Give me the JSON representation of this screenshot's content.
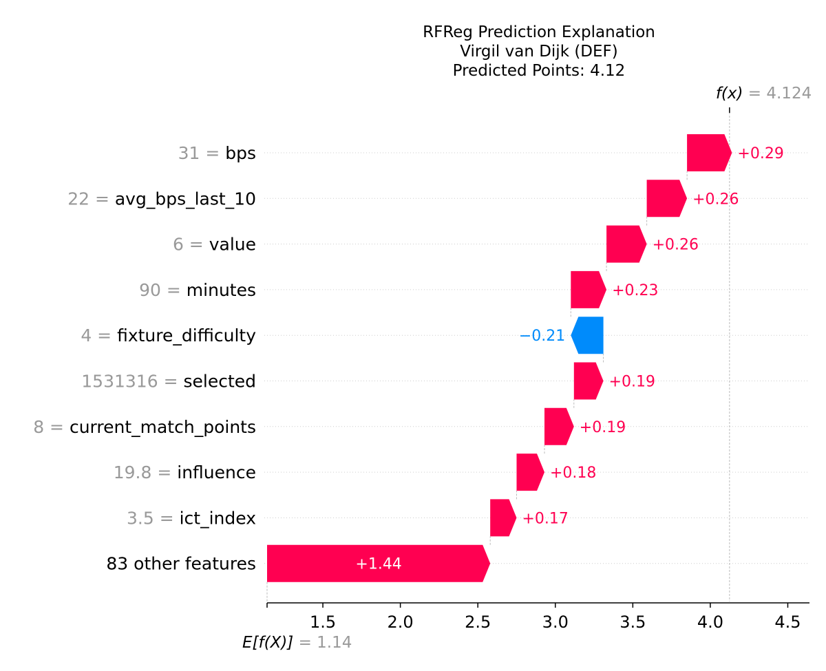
{
  "chart_data": {
    "type": "waterfall",
    "title_lines": [
      "RFReg Prediction Explanation",
      "Virgil van Dijk (DEF)",
      "Predicted Points: 4.12"
    ],
    "base_value": 1.14,
    "base_value_label": "= 1.14",
    "base_value_symbol": "E[f(X)]",
    "final_value": 4.124,
    "final_value_label": "= 4.124",
    "final_value_symbol": "f(x)",
    "features": [
      {
        "value": "31",
        "name": "bps",
        "contribution": 0.29,
        "label": "+0.29"
      },
      {
        "value": "22",
        "name": "avg_bps_last_10",
        "contribution": 0.26,
        "label": "+0.26"
      },
      {
        "value": "6",
        "name": "value",
        "contribution": 0.26,
        "label": "+0.26"
      },
      {
        "value": "90",
        "name": "minutes",
        "contribution": 0.23,
        "label": "+0.23"
      },
      {
        "value": "4",
        "name": "fixture_difficulty",
        "contribution": -0.21,
        "label": "−0.21"
      },
      {
        "value": "1531316",
        "name": "selected",
        "contribution": 0.19,
        "label": "+0.19"
      },
      {
        "value": "8",
        "name": "current_match_points",
        "contribution": 0.19,
        "label": "+0.19"
      },
      {
        "value": "19.8",
        "name": "influence",
        "contribution": 0.18,
        "label": "+0.18"
      },
      {
        "value": "3.5",
        "name": "ict_index",
        "contribution": 0.17,
        "label": "+0.17"
      },
      {
        "value": "",
        "name": "83 other features",
        "contribution": 1.44,
        "label": "+1.44"
      }
    ],
    "xticks": [
      {
        "value": 1.5,
        "label": "1.5"
      },
      {
        "value": 2.0,
        "label": "2.0"
      },
      {
        "value": 2.5,
        "label": "2.5"
      },
      {
        "value": 3.0,
        "label": "3.0"
      },
      {
        "value": 3.5,
        "label": "3.5"
      },
      {
        "value": 4.0,
        "label": "4.0"
      },
      {
        "value": 4.5,
        "label": "4.5"
      }
    ],
    "xlim": [
      1.14,
      4.64
    ],
    "positive_color": "#ff0051",
    "negative_color": "#008bfb",
    "label_gray": "#999999"
  }
}
